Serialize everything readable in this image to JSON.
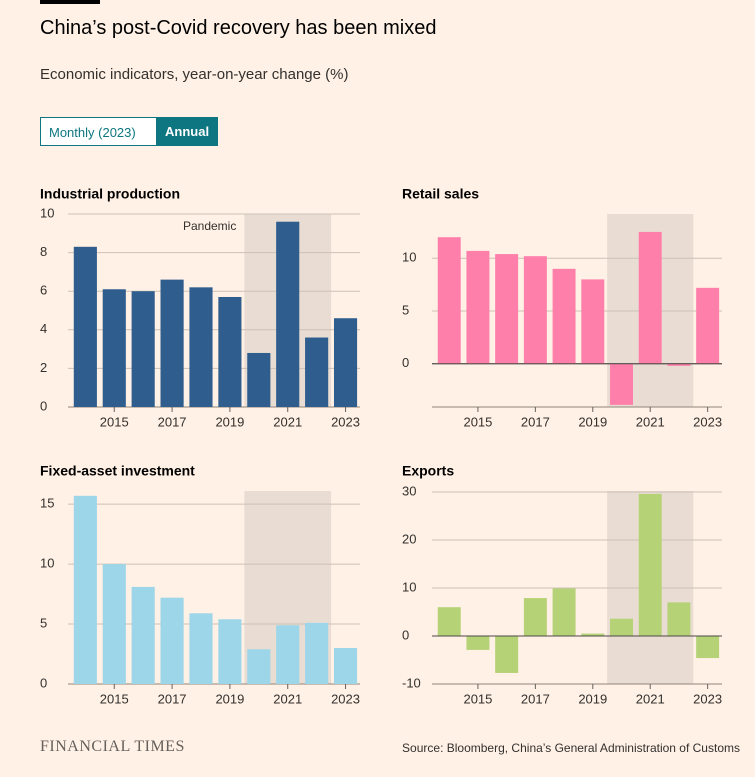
{
  "title": "China’s post-Covid recovery has been mixed",
  "subtitle": "Economic indicators, year-on-year change (%)",
  "buttons": [
    "Monthly (2023)",
    "Annual"
  ],
  "logo": "FINANCIAL TIMES",
  "source": "Source: Bloomberg, China’s General Administration of Customs",
  "chart_data": [
    {
      "type": "bar",
      "title": "Industrial production",
      "color": "#2e5d8e",
      "x": [
        2014,
        2015,
        2016,
        2017,
        2018,
        2019,
        2020,
        2021,
        2022,
        2023
      ],
      "values": [
        8.3,
        6.1,
        6.0,
        6.6,
        6.2,
        5.7,
        2.8,
        9.6,
        3.6,
        4.6
      ],
      "xlim": [
        2013.4,
        2023.5
      ],
      "xticks": [
        2015,
        2017,
        2019,
        2021,
        2023
      ],
      "ylim": [
        0,
        10
      ],
      "yticks": [
        0,
        2,
        4,
        6,
        8,
        10
      ],
      "grid": true,
      "pandemic": {
        "label": "Pandemic",
        "range": [
          2019.5,
          2022.5
        ]
      }
    },
    {
      "type": "bar",
      "title": "Retail sales",
      "color": "#ff7fab",
      "x": [
        2014,
        2015,
        2016,
        2017,
        2018,
        2019,
        2020,
        2021,
        2022,
        2023
      ],
      "values": [
        12.0,
        10.7,
        10.4,
        10.2,
        9.0,
        8.0,
        -3.9,
        12.5,
        -0.2,
        7.2
      ],
      "xlim": [
        2013.4,
        2023.5
      ],
      "xticks": [
        2015,
        2017,
        2019,
        2021,
        2023
      ],
      "ylim": [
        -4.1,
        14.2
      ],
      "yticks": [
        0,
        5,
        10
      ],
      "grid": true,
      "pandemic": {
        "range": [
          2019.5,
          2022.5
        ]
      }
    },
    {
      "type": "bar",
      "title": "Fixed-asset investment",
      "color": "#9dd6e9",
      "x": [
        2014,
        2015,
        2016,
        2017,
        2018,
        2019,
        2020,
        2021,
        2022,
        2023
      ],
      "values": [
        15.7,
        10.0,
        8.1,
        7.2,
        5.9,
        5.4,
        2.9,
        4.9,
        5.1,
        3.0
      ],
      "xlim": [
        2013.4,
        2023.5
      ],
      "xticks": [
        2015,
        2017,
        2019,
        2021,
        2023
      ],
      "ylim": [
        0,
        16.1
      ],
      "yticks": [
        0,
        5,
        10,
        15
      ],
      "grid": true,
      "pandemic": {
        "range": [
          2019.5,
          2022.5
        ]
      }
    },
    {
      "type": "bar",
      "title": "Exports",
      "color": "#b5d276",
      "x": [
        2014,
        2015,
        2016,
        2017,
        2018,
        2019,
        2020,
        2021,
        2022,
        2023
      ],
      "values": [
        6.0,
        -2.9,
        -7.7,
        7.9,
        9.9,
        0.5,
        3.6,
        29.6,
        7.0,
        -4.6
      ],
      "xlim": [
        2013.4,
        2023.5
      ],
      "xticks": [
        2015,
        2017,
        2019,
        2021,
        2023
      ],
      "ylim": [
        -10,
        30.2
      ],
      "yticks": [
        -10,
        0,
        10,
        20,
        30
      ],
      "grid": true,
      "pandemic": {
        "range": [
          2019.5,
          2022.5
        ]
      }
    }
  ]
}
